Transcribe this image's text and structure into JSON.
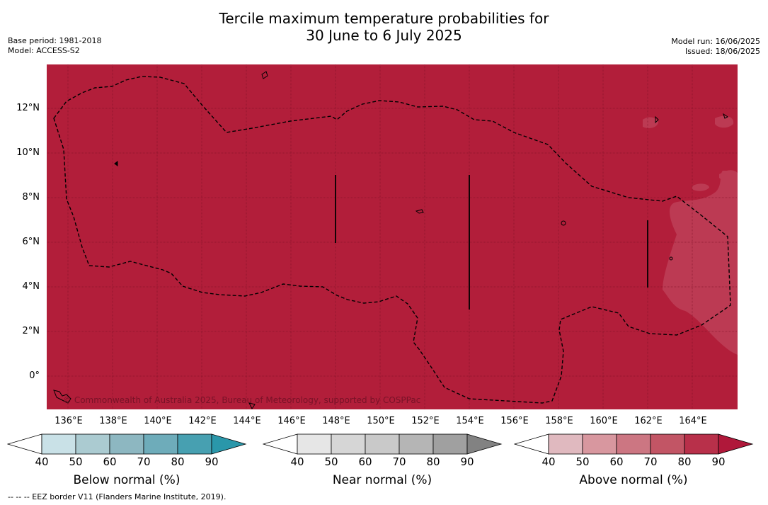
{
  "title_line1": "Tercile maximum temperature probabilities for",
  "title_line2": "30 June to 6 July 2025",
  "base_period": "Base period: 1981-2018",
  "model": "Model: ACCESS-S2",
  "model_run": "Model run: 16/06/2025",
  "issued": "Issued: 18/06/2025",
  "lat_labels": [
    "12°N",
    "10°N",
    "8°N",
    "6°N",
    "4°N",
    "2°N",
    "0°"
  ],
  "lon_labels": [
    "136°E",
    "138°E",
    "140°E",
    "142°E",
    "144°E",
    "146°E",
    "148°E",
    "150°E",
    "152°E",
    "154°E",
    "156°E",
    "158°E",
    "160°E",
    "162°E",
    "164°E"
  ],
  "copyright": "© Commonwealth of Australia 2025, Bureau of Meteorology, supported by COSPPac",
  "colorbars": [
    {
      "title": "Below normal (%)",
      "ticks": [
        "40",
        "50",
        "60",
        "70",
        "80",
        "90"
      ],
      "colors": [
        "#ffffff",
        "#c9e1e7",
        "#abcbd1",
        "#8db7c1",
        "#6eacba",
        "#47a0b1",
        "#2a97aa"
      ]
    },
    {
      "title": "Near normal (%)",
      "ticks": [
        "40",
        "50",
        "60",
        "70",
        "80",
        "90"
      ],
      "colors": [
        "#ffffff",
        "#e6e6e6",
        "#d6d6d6",
        "#c9c9c9",
        "#b5b5b5",
        "#a0a0a0",
        "#828282"
      ]
    },
    {
      "title": "Above normal (%)",
      "ticks": [
        "40",
        "50",
        "60",
        "70",
        "80",
        "90"
      ],
      "colors": [
        "#ffffff",
        "#e0b9bf",
        "#d8979f",
        "#cc7682",
        "#c25565",
        "#b8304a",
        "#b0183a"
      ]
    }
  ],
  "map_colors": {
    "above_90": "#b21e3a",
    "above_80": "#bc3a53"
  },
  "footnote": "--  --  -- EEZ border V11 (Flanders Marine Institute, 2019)."
}
